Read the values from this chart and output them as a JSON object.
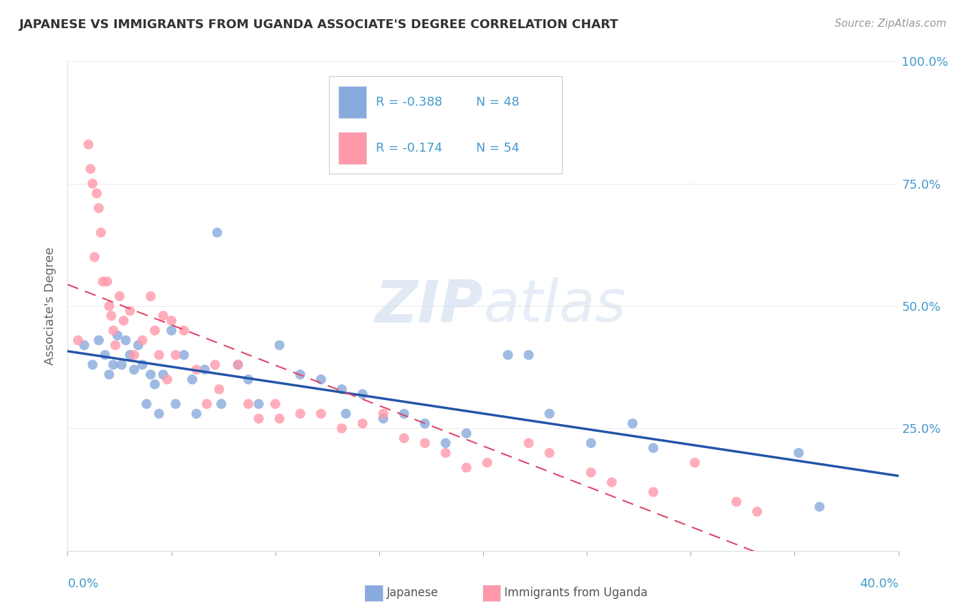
{
  "title": "JAPANESE VS IMMIGRANTS FROM UGANDA ASSOCIATE'S DEGREE CORRELATION CHART",
  "source": "Source: ZipAtlas.com",
  "ylabel": "Associate's Degree",
  "watermark_zip": "ZIP",
  "watermark_atlas": "atlas",
  "xlim": [
    0.0,
    0.4
  ],
  "ylim": [
    0.0,
    1.0
  ],
  "ytick_vals": [
    0.0,
    0.25,
    0.5,
    0.75,
    1.0
  ],
  "ytick_labels": [
    "",
    "25.0%",
    "50.0%",
    "75.0%",
    "100.0%"
  ],
  "xtick_label_left": "0.0%",
  "xtick_label_right": "40.0%",
  "legend_r_blue": "-0.388",
  "legend_n_blue": "48",
  "legend_r_pink": "-0.174",
  "legend_n_pink": "54",
  "blue_scatter_color": "#88AADD",
  "pink_scatter_color": "#FF99AA",
  "trend_blue_color": "#2255AA",
  "trend_pink_color": "#DD4466",
  "axis_tick_color": "#4499CC",
  "grid_color": "#CCCCCC",
  "label_japanese": "Japanese",
  "label_uganda": "Immigrants from Uganda",
  "japanese_x": [
    0.008,
    0.012,
    0.015,
    0.018,
    0.02,
    0.022,
    0.024,
    0.026,
    0.028,
    0.03,
    0.032,
    0.034,
    0.036,
    0.038,
    0.04,
    0.042,
    0.044,
    0.046,
    0.05,
    0.052,
    0.056,
    0.06,
    0.062,
    0.066,
    0.072,
    0.074,
    0.082,
    0.087,
    0.092,
    0.102,
    0.112,
    0.122,
    0.132,
    0.134,
    0.142,
    0.152,
    0.162,
    0.172,
    0.182,
    0.192,
    0.212,
    0.222,
    0.232,
    0.252,
    0.272,
    0.282,
    0.352,
    0.362
  ],
  "japanese_y": [
    0.42,
    0.38,
    0.43,
    0.4,
    0.36,
    0.38,
    0.44,
    0.38,
    0.43,
    0.4,
    0.37,
    0.42,
    0.38,
    0.3,
    0.36,
    0.34,
    0.28,
    0.36,
    0.45,
    0.3,
    0.4,
    0.35,
    0.28,
    0.37,
    0.65,
    0.3,
    0.38,
    0.35,
    0.3,
    0.42,
    0.36,
    0.35,
    0.33,
    0.28,
    0.32,
    0.27,
    0.28,
    0.26,
    0.22,
    0.24,
    0.4,
    0.4,
    0.28,
    0.22,
    0.26,
    0.21,
    0.2,
    0.09
  ],
  "uganda_x": [
    0.005,
    0.01,
    0.011,
    0.012,
    0.013,
    0.014,
    0.015,
    0.016,
    0.017,
    0.019,
    0.02,
    0.021,
    0.022,
    0.023,
    0.025,
    0.027,
    0.03,
    0.032,
    0.036,
    0.04,
    0.042,
    0.044,
    0.046,
    0.048,
    0.05,
    0.052,
    0.056,
    0.062,
    0.067,
    0.071,
    0.073,
    0.082,
    0.087,
    0.092,
    0.1,
    0.102,
    0.112,
    0.122,
    0.132,
    0.142,
    0.152,
    0.162,
    0.172,
    0.182,
    0.192,
    0.202,
    0.222,
    0.232,
    0.252,
    0.262,
    0.282,
    0.302,
    0.322,
    0.332
  ],
  "uganda_y": [
    0.43,
    0.83,
    0.78,
    0.75,
    0.6,
    0.73,
    0.7,
    0.65,
    0.55,
    0.55,
    0.5,
    0.48,
    0.45,
    0.42,
    0.52,
    0.47,
    0.49,
    0.4,
    0.43,
    0.52,
    0.45,
    0.4,
    0.48,
    0.35,
    0.47,
    0.4,
    0.45,
    0.37,
    0.3,
    0.38,
    0.33,
    0.38,
    0.3,
    0.27,
    0.3,
    0.27,
    0.28,
    0.28,
    0.25,
    0.26,
    0.28,
    0.23,
    0.22,
    0.2,
    0.17,
    0.18,
    0.22,
    0.2,
    0.16,
    0.14,
    0.12,
    0.18,
    0.1,
    0.08
  ]
}
